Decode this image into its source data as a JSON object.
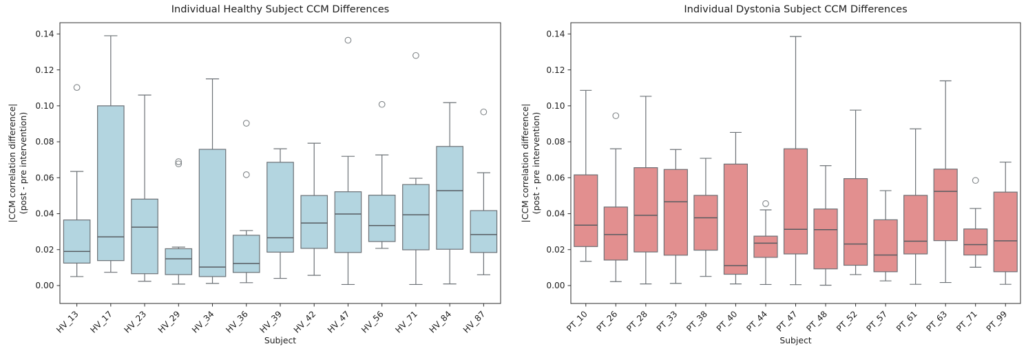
{
  "figure": {
    "background": "#ffffff",
    "text_color": "#1c1c1c",
    "spine_color": "#2b2b2b",
    "box_edge_color": "#6b7075",
    "whisker_color": "#6b7075",
    "median_color": "#565b60",
    "outlier_color": "#7f8487"
  },
  "chart_data": [
    {
      "type": "box",
      "title": "Individual Healthy Subject CCM Differences",
      "xlabel": "Subject",
      "ylabel_line1": "|CCM correlation difference|",
      "ylabel_line2": "(post - pre intervention)",
      "box_color": "#b3d5e0",
      "grid": false,
      "legend": null,
      "ylim": [
        -0.01,
        0.1465
      ],
      "yticks": [
        0.0,
        0.02,
        0.04,
        0.06,
        0.08,
        0.1,
        0.12,
        0.14
      ],
      "categories": [
        "HV_13",
        "HV_17",
        "HV_23",
        "HV_29",
        "HV_34",
        "HV_36",
        "HV_39",
        "HV_42",
        "HV_47",
        "HV_56",
        "HV_71",
        "HV_84",
        "HV_87"
      ],
      "boxes": [
        {
          "whislo": 0.005,
          "q1": 0.0125,
          "med": 0.019,
          "q3": 0.0365,
          "whishi": 0.0635,
          "fliers": [
            0.1102
          ]
        },
        {
          "whislo": 0.0074,
          "q1": 0.0139,
          "med": 0.0271,
          "q3": 0.1,
          "whishi": 0.139,
          "fliers": []
        },
        {
          "whislo": 0.0024,
          "q1": 0.0066,
          "med": 0.0325,
          "q3": 0.0481,
          "whishi": 0.106,
          "fliers": []
        },
        {
          "whislo": 0.0008,
          "q1": 0.0061,
          "med": 0.0149,
          "q3": 0.0205,
          "whishi": 0.0214,
          "fliers": [
            0.0677,
            0.0689
          ]
        },
        {
          "whislo": 0.0012,
          "q1": 0.005,
          "med": 0.0103,
          "q3": 0.0758,
          "whishi": 0.115,
          "fliers": []
        },
        {
          "whislo": 0.0016,
          "q1": 0.0073,
          "med": 0.0123,
          "q3": 0.028,
          "whishi": 0.0306,
          "fliers": [
            0.0617,
            0.0903
          ]
        },
        {
          "whislo": 0.004,
          "q1": 0.0186,
          "med": 0.0266,
          "q3": 0.0686,
          "whishi": 0.0761,
          "fliers": []
        },
        {
          "whislo": 0.0057,
          "q1": 0.0207,
          "med": 0.0348,
          "q3": 0.0501,
          "whishi": 0.0792,
          "fliers": []
        },
        {
          "whislo": 0.0006,
          "q1": 0.0184,
          "med": 0.0398,
          "q3": 0.0522,
          "whishi": 0.0719,
          "fliers": [
            0.1365
          ]
        },
        {
          "whislo": 0.0207,
          "q1": 0.0245,
          "med": 0.0334,
          "q3": 0.0503,
          "whishi": 0.0727,
          "fliers": [
            0.1008
          ]
        },
        {
          "whislo": 0.0006,
          "q1": 0.0199,
          "med": 0.0394,
          "q3": 0.0562,
          "whishi": 0.0597,
          "fliers": [
            0.128
          ]
        },
        {
          "whislo": 0.0009,
          "q1": 0.0202,
          "med": 0.0528,
          "q3": 0.0774,
          "whishi": 0.1018,
          "fliers": []
        },
        {
          "whislo": 0.006,
          "q1": 0.0184,
          "med": 0.0284,
          "q3": 0.0417,
          "whishi": 0.0628,
          "fliers": [
            0.0966
          ]
        }
      ]
    },
    {
      "type": "box",
      "title": "Individual Dystonia Subject CCM Differences",
      "xlabel": "Subject",
      "ylabel_line1": "|CCM correlation difference|",
      "ylabel_line2": "(post - pre intervention)",
      "box_color": "#e28f8f",
      "grid": false,
      "legend": null,
      "ylim": [
        -0.01,
        0.1465
      ],
      "yticks": [
        0.0,
        0.02,
        0.04,
        0.06,
        0.08,
        0.1,
        0.12,
        0.14
      ],
      "categories": [
        "PT_10",
        "PT_26",
        "PT_28",
        "PT_33",
        "PT_38",
        "PT_40",
        "PT_44",
        "PT_47",
        "PT_48",
        "PT_52",
        "PT_57",
        "PT_61",
        "PT_63",
        "PT_71",
        "PT_99"
      ],
      "boxes": [
        {
          "whislo": 0.0135,
          "q1": 0.0217,
          "med": 0.0336,
          "q3": 0.0616,
          "whishi": 0.1086,
          "fliers": []
        },
        {
          "whislo": 0.0022,
          "q1": 0.0142,
          "med": 0.0284,
          "q3": 0.0437,
          "whishi": 0.0761,
          "fliers": [
            0.0945
          ]
        },
        {
          "whislo": 0.0009,
          "q1": 0.0187,
          "med": 0.0391,
          "q3": 0.0656,
          "whishi": 0.1053,
          "fliers": []
        },
        {
          "whislo": 0.0012,
          "q1": 0.0169,
          "med": 0.0466,
          "q3": 0.0646,
          "whishi": 0.0757,
          "fliers": []
        },
        {
          "whislo": 0.0051,
          "q1": 0.0197,
          "med": 0.0377,
          "q3": 0.0502,
          "whishi": 0.0708,
          "fliers": []
        },
        {
          "whislo": 0.0009,
          "q1": 0.0063,
          "med": 0.0111,
          "q3": 0.0676,
          "whishi": 0.0852,
          "fliers": []
        },
        {
          "whislo": 0.0006,
          "q1": 0.0157,
          "med": 0.0236,
          "q3": 0.0275,
          "whishi": 0.0421,
          "fliers": [
            0.0456
          ]
        },
        {
          "whislo": 0.0005,
          "q1": 0.0176,
          "med": 0.0313,
          "q3": 0.0761,
          "whishi": 0.1386,
          "fliers": []
        },
        {
          "whislo": 0.0002,
          "q1": 0.0093,
          "med": 0.0311,
          "q3": 0.0426,
          "whishi": 0.0667,
          "fliers": []
        },
        {
          "whislo": 0.0061,
          "q1": 0.0113,
          "med": 0.0231,
          "q3": 0.0595,
          "whishi": 0.0976,
          "fliers": []
        },
        {
          "whislo": 0.0026,
          "q1": 0.0077,
          "med": 0.017,
          "q3": 0.0366,
          "whishi": 0.0528,
          "fliers": []
        },
        {
          "whislo": 0.0007,
          "q1": 0.0176,
          "med": 0.0247,
          "q3": 0.0502,
          "whishi": 0.0872,
          "fliers": []
        },
        {
          "whislo": 0.0017,
          "q1": 0.025,
          "med": 0.0524,
          "q3": 0.0648,
          "whishi": 0.1139,
          "fliers": []
        },
        {
          "whislo": 0.0102,
          "q1": 0.017,
          "med": 0.0228,
          "q3": 0.0315,
          "whishi": 0.0429,
          "fliers": [
            0.0585
          ]
        },
        {
          "whislo": 0.0007,
          "q1": 0.0077,
          "med": 0.0249,
          "q3": 0.052,
          "whishi": 0.0687,
          "fliers": []
        }
      ]
    }
  ]
}
